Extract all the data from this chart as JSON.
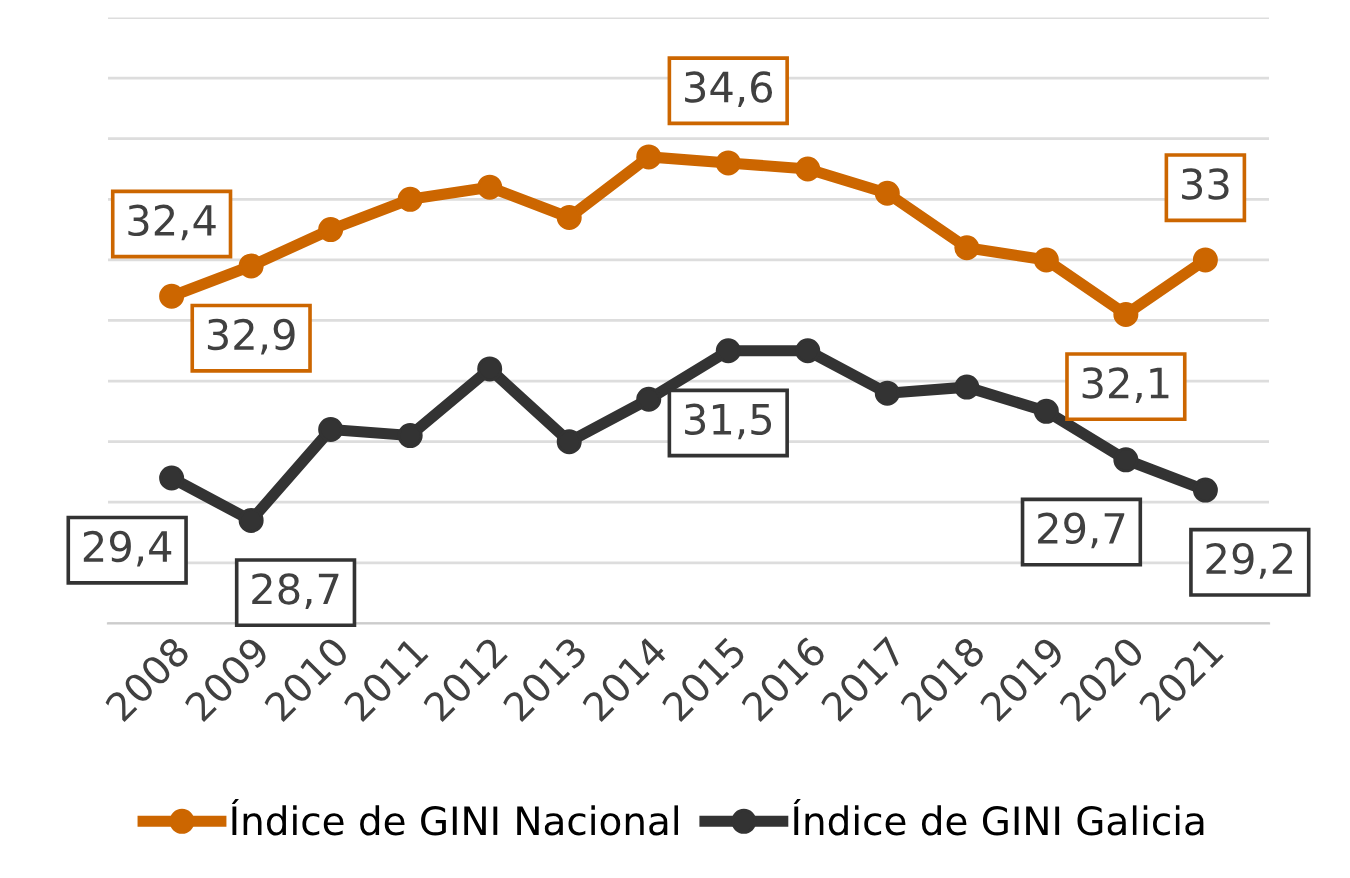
{
  "chart_data": {
    "type": "line",
    "categories": [
      "2008",
      "2009",
      "2010",
      "2011",
      "2012",
      "2013",
      "2014",
      "2015",
      "2016",
      "2017",
      "2018",
      "2019",
      "2020",
      "2021"
    ],
    "series": [
      {
        "name": "Índice de GINI Nacional",
        "color": "#cc6600",
        "values": [
          32.4,
          32.9,
          33.5,
          34.0,
          34.2,
          33.7,
          34.7,
          34.6,
          34.5,
          34.1,
          33.2,
          33.0,
          32.1,
          33.0
        ],
        "value_labels": [
          "32,4",
          "32,9",
          null,
          null,
          null,
          null,
          null,
          "34,6",
          null,
          null,
          null,
          null,
          "32,1",
          "33"
        ]
      },
      {
        "name": "Índice de GINI Galicia",
        "color": "#333333",
        "values": [
          29.4,
          28.7,
          30.2,
          30.1,
          31.2,
          30.0,
          30.7,
          31.5,
          31.5,
          30.8,
          30.9,
          30.5,
          29.7,
          29.2
        ],
        "value_labels": [
          "29,4",
          "28,7",
          null,
          null,
          null,
          null,
          null,
          "31,5",
          null,
          null,
          null,
          null,
          "29,7",
          "29,2"
        ]
      }
    ],
    "ylim": [
      27,
      37
    ],
    "yticks": [
      {
        "value": 27,
        "label": null
      },
      {
        "value": 28,
        "label": null
      },
      {
        "value": 29,
        "label": null
      },
      {
        "value": 30,
        "label": null
      },
      {
        "value": 31,
        "label": null
      },
      {
        "value": 32,
        "label": null
      },
      {
        "value": 33,
        "label": null
      },
      {
        "value": 34,
        "label": null
      },
      {
        "value": 35,
        "label": null
      },
      {
        "value": 36,
        "label": null
      },
      {
        "value": 37,
        "label": null
      }
    ],
    "tick_labels": "x",
    "grid": "y",
    "legend": "bottom",
    "marker": "circle",
    "line_style": "solid"
  }
}
